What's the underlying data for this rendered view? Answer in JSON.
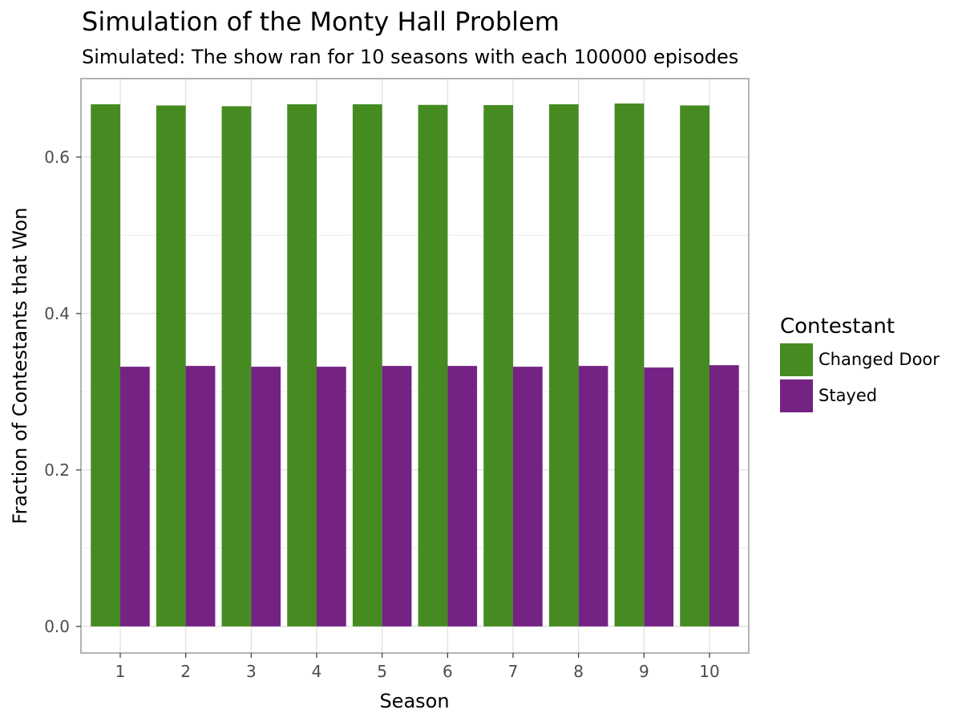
{
  "chart_data": {
    "type": "bar",
    "title": "Simulation of the Monty Hall Problem",
    "subtitle": "Simulated: The show ran for 10 seasons with each 100000 episodes",
    "xlabel": "Season",
    "ylabel": "Fraction of Contestants that Won",
    "categories": [
      "1",
      "2",
      "3",
      "4",
      "5",
      "6",
      "7",
      "8",
      "9",
      "10"
    ],
    "series": [
      {
        "name": "Changed Door",
        "color": "#458B22",
        "values": [
          0.6675,
          0.666,
          0.665,
          0.6675,
          0.6675,
          0.6667,
          0.6665,
          0.6675,
          0.6685,
          0.666
        ]
      },
      {
        "name": "Stayed",
        "color": "#742385",
        "values": [
          0.332,
          0.333,
          0.332,
          0.332,
          0.333,
          0.333,
          0.332,
          0.333,
          0.331,
          0.334
        ]
      }
    ],
    "ylim": [
      -0.034,
      0.7003
    ],
    "yticks": [
      0.0,
      0.2,
      0.4,
      0.6
    ],
    "ytick_labels": [
      "0.0",
      "0.2",
      "0.4",
      "0.6"
    ],
    "grid": true,
    "legend": {
      "title": "Contestant",
      "position": "right"
    }
  }
}
